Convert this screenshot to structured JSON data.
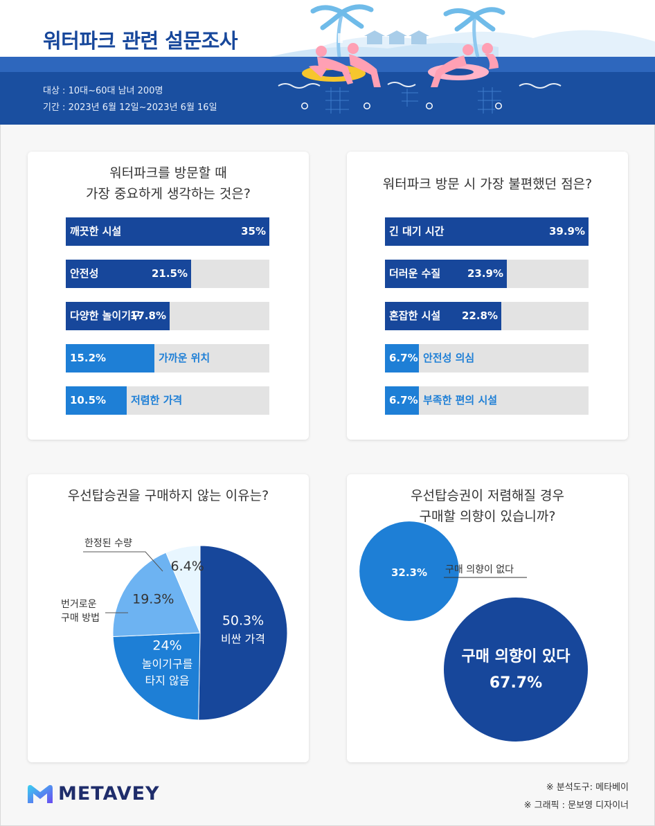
{
  "header": {
    "title": "워터파크 관련 설문조사",
    "target": "대상 : 10대~60대 남녀 200명",
    "period": "기간 : 2023년 6월 12일~2023년 6월 16일"
  },
  "colors": {
    "dark_blue": "#17479b",
    "mid_blue": "#1e7fd6",
    "light_blue": "#6db3f2",
    "pale_blue": "#e8f6ff",
    "track_gray": "#e3e3e3"
  },
  "chart_data": [
    {
      "type": "bar",
      "title": "워터파크를 방문할 때\n가장 중요하게 생각하는 것은?",
      "categories": [
        "깨끗한 시설",
        "안전성",
        "다양한 놀이기구",
        "가까운 위치",
        "저렴한 가격"
      ],
      "values": [
        35,
        21.5,
        17.8,
        15.2,
        10.5
      ],
      "value_labels": [
        "35%",
        "21.5%",
        "17.8%",
        "15.2%",
        "10.5%"
      ],
      "xlim": [
        0,
        35
      ],
      "orientation": "horizontal"
    },
    {
      "type": "bar",
      "title": "워터파크 방문 시 가장 불편했던 점은?",
      "categories": [
        "긴 대기 시간",
        "더러운 수질",
        "혼잡한 시설",
        "안전성 의심",
        "부족한 편의 시설"
      ],
      "values": [
        39.9,
        23.9,
        22.8,
        6.7,
        6.7
      ],
      "value_labels": [
        "39.9%",
        "23.9%",
        "22.8%",
        "6.7%",
        "6.7%"
      ],
      "xlim": [
        0,
        39.9
      ],
      "orientation": "horizontal"
    },
    {
      "type": "pie",
      "title": "우선탑승권을 구매하지 않는 이유는?",
      "categories": [
        "비싼 가격",
        "놀이기구를 타지 않음",
        "번거로운 구매 방법",
        "한정된 수량"
      ],
      "values": [
        50.3,
        24,
        19.3,
        6.4
      ],
      "value_labels": [
        "50.3%",
        "24%",
        "19.3%",
        "6.4%"
      ],
      "slice_labels": [
        "비싼 가격",
        "놀이기구를\n타지 않음",
        "",
        ""
      ],
      "callouts": [
        "",
        "",
        "번거로운\n구매 방법",
        "한정된 수량"
      ]
    },
    {
      "type": "bubble",
      "title": "우선탑승권이 저렴해질 경우\n구매할 의향이 있습니까?",
      "categories": [
        "구매 의향이 없다",
        "구매 의향이 있다"
      ],
      "values": [
        32.3,
        67.7
      ],
      "value_labels": [
        "32.3%",
        "67.7%"
      ]
    }
  ],
  "footer": {
    "brand": "METAVEY",
    "credit_tool": "※ 분석도구: 메타베이",
    "credit_graphic": "※ 그래픽 : 문보영 디자이너"
  }
}
